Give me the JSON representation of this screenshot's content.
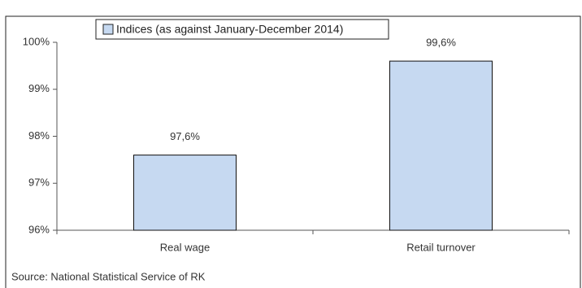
{
  "chart_data": {
    "type": "bar",
    "categories": [
      "Real wage",
      "Retail turnover"
    ],
    "series": [
      {
        "name": "Indices (as against January-December 2014)",
        "color": "#c6d9f1",
        "values": [
          97.6,
          99.6
        ],
        "value_labels": [
          "97,6%",
          "99,6%"
        ]
      }
    ],
    "ylim": [
      96,
      100
    ],
    "yticks": [
      {
        "value": 96,
        "label": "96%"
      },
      {
        "value": 97,
        "label": "97%"
      },
      {
        "value": 98,
        "label": "98%"
      },
      {
        "value": 99,
        "label": "99%"
      },
      {
        "value": 100,
        "label": "100%"
      }
    ],
    "grid": false,
    "legend": "top",
    "source": "Source: National Statistical Service of RK"
  }
}
